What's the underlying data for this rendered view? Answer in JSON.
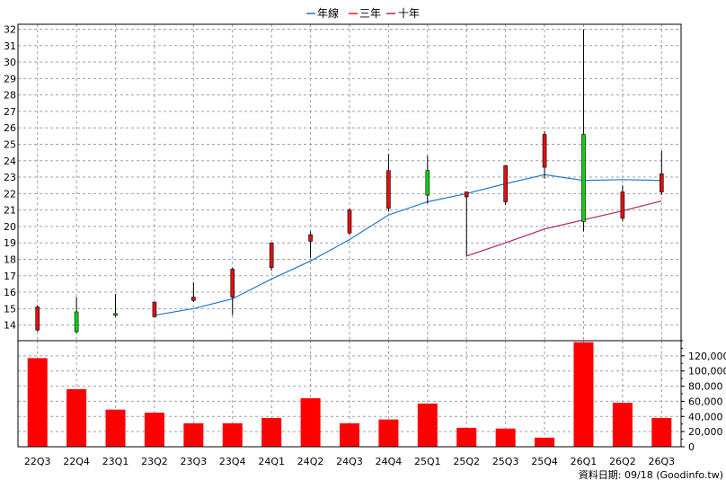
{
  "chart_data": {
    "type": "candlestick+volume",
    "categories": [
      "22Q3",
      "22Q4",
      "23Q1",
      "23Q2",
      "23Q3",
      "23Q4",
      "24Q1",
      "24Q2",
      "24Q3",
      "24Q4",
      "25Q1",
      "25Q2",
      "25Q3",
      "25Q4",
      "26Q1",
      "26Q2",
      "26Q3"
    ],
    "legend": [
      {
        "label": "年線",
        "color": "#1e78d2"
      },
      {
        "label": "三年",
        "color": "#e02020"
      },
      {
        "label": "十年",
        "color": "#b0206e"
      }
    ],
    "price_axis": {
      "ticks": [
        14,
        15,
        16,
        17,
        18,
        19,
        20,
        21,
        22,
        23,
        24,
        25,
        26,
        27,
        28,
        29,
        30,
        31,
        32
      ],
      "ylim": [
        13.05,
        32.3
      ]
    },
    "volume_axis": {
      "ticks": [
        0,
        20000,
        40000,
        60000,
        80000,
        100000,
        120000
      ],
      "tick_labels": [
        "0",
        "20,000",
        "40,000",
        "60,000",
        "80,000",
        "100,000",
        "120,000"
      ],
      "ylim": [
        0,
        140000
      ]
    },
    "candles": [
      {
        "o": 13.7,
        "h": 15.2,
        "l": 13.6,
        "c": 15.1
      },
      {
        "o": 14.8,
        "h": 15.7,
        "l": 13.5,
        "c": 13.6
      },
      {
        "o": 14.7,
        "h": 15.9,
        "l": 14.5,
        "c": 14.6
      },
      {
        "o": 14.5,
        "h": 15.4,
        "l": 14.5,
        "c": 15.4
      },
      {
        "o": 15.5,
        "h": 16.6,
        "l": 15.4,
        "c": 15.7
      },
      {
        "o": 15.7,
        "h": 17.5,
        "l": 14.6,
        "c": 17.4
      },
      {
        "o": 17.5,
        "h": 19.0,
        "l": 17.3,
        "c": 19.0
      },
      {
        "o": 19.1,
        "h": 19.7,
        "l": 18.1,
        "c": 19.5
      },
      {
        "o": 19.6,
        "h": 21.1,
        "l": 19.5,
        "c": 21.0
      },
      {
        "o": 21.1,
        "h": 24.4,
        "l": 20.9,
        "c": 23.4
      },
      {
        "o": 23.4,
        "h": 24.3,
        "l": 21.4,
        "c": 21.9
      },
      {
        "o": 21.8,
        "h": 22.1,
        "l": 18.2,
        "c": 22.1
      },
      {
        "o": 21.5,
        "h": 23.7,
        "l": 21.3,
        "c": 23.7
      },
      {
        "o": 23.6,
        "h": 25.8,
        "l": 22.9,
        "c": 25.6
      },
      {
        "o": 25.6,
        "h": 32.0,
        "l": 19.7,
        "c": 20.3
      },
      {
        "o": 20.5,
        "h": 22.5,
        "l": 20.3,
        "c": 22.1
      },
      {
        "o": 22.1,
        "h": 24.6,
        "l": 21.9,
        "c": 23.2
      }
    ],
    "series": [
      {
        "name": "年線",
        "color": "#1e78d2",
        "values": [
          null,
          null,
          null,
          14.6,
          15.0,
          15.6,
          16.8,
          17.9,
          19.2,
          20.7,
          21.5,
          22.0,
          22.6,
          23.15,
          22.8,
          22.85,
          22.8
        ]
      },
      {
        "name": "三年",
        "color": "#e02020",
        "values": [
          null,
          null,
          null,
          null,
          null,
          null,
          null,
          null,
          null,
          null,
          null,
          null,
          null,
          null,
          null,
          null,
          null
        ]
      },
      {
        "name": "十年",
        "color": "#b0206e",
        "values": [
          null,
          null,
          null,
          null,
          null,
          null,
          null,
          null,
          null,
          null,
          null,
          18.2,
          19.0,
          19.85,
          20.4,
          20.95,
          21.55
        ]
      }
    ],
    "volume": [
      117000,
      76000,
      49000,
      45000,
      31000,
      31000,
      38000,
      64000,
      31000,
      36000,
      57000,
      25000,
      24000,
      12000,
      138000,
      58000,
      38000
    ],
    "candle_colors": {
      "up": "#e01010",
      "down": "#10d010"
    },
    "volume_color": "#ff0000"
  },
  "footer": {
    "source": "資料日期: 09/18  (Goodinfo.tw)"
  }
}
